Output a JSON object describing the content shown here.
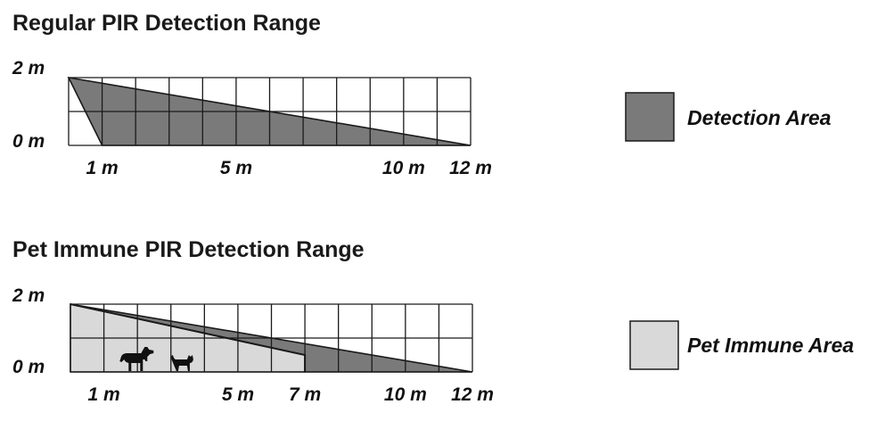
{
  "colors": {
    "detection": "#7a7a7a",
    "pet_immune": "#d9d9d9",
    "grid": "#1a1a1a"
  },
  "regular": {
    "title": "Regular PIR Detection Range",
    "y_labels": [
      "2 m",
      "0 m"
    ],
    "x_labels": [
      {
        "value": 1,
        "text": "1 m"
      },
      {
        "value": 5,
        "text": "5 m"
      },
      {
        "value": 10,
        "text": "10 m"
      },
      {
        "value": 12,
        "text": "12 m"
      }
    ],
    "detection_area": [
      [
        0,
        2
      ],
      [
        12,
        0
      ],
      [
        1,
        0
      ]
    ]
  },
  "pet": {
    "title": "Pet Immune PIR Detection Range",
    "y_labels": [
      "2 m",
      "0 m"
    ],
    "x_labels": [
      {
        "value": 1,
        "text": "1 m"
      },
      {
        "value": 5,
        "text": "5 m"
      },
      {
        "value": 7,
        "text": "7 m"
      },
      {
        "value": 10,
        "text": "10 m"
      },
      {
        "value": 12,
        "text": "12 m"
      }
    ],
    "detection_area": [
      [
        0,
        2
      ],
      [
        12,
        0
      ],
      [
        7,
        0
      ],
      [
        7,
        0.5
      ]
    ],
    "pet_immune_area": [
      [
        0,
        2
      ],
      [
        7,
        0.5
      ],
      [
        7,
        0
      ],
      [
        0,
        0
      ]
    ],
    "animals": [
      {
        "kind": "dog-icon",
        "x": 1.95
      },
      {
        "kind": "cat-icon",
        "x": 3.35
      }
    ]
  },
  "legend": [
    {
      "label": "Detection Area",
      "color_key": "detection"
    },
    {
      "label": "Pet Immune Area",
      "color_key": "pet_immune"
    }
  ]
}
